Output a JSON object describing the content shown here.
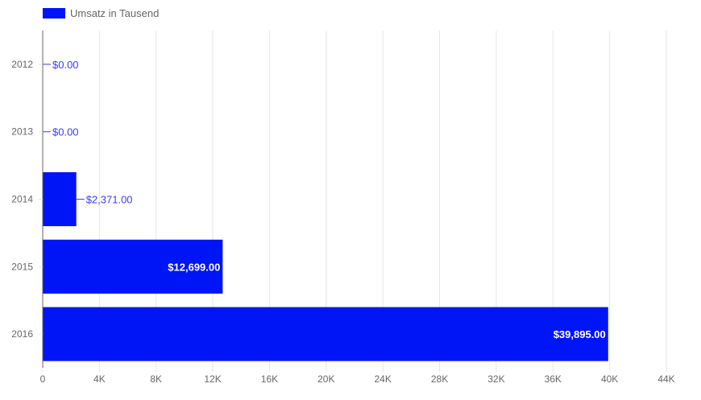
{
  "chart_data": {
    "type": "bar",
    "orientation": "horizontal",
    "categories": [
      "2012",
      "2013",
      "2014",
      "2015",
      "2016"
    ],
    "series": [
      {
        "name": "Umsatz in Tausend",
        "values": [
          0,
          0,
          2371,
          12699,
          39895
        ],
        "data_labels": [
          "$0.00",
          "$0.00",
          "$2,371.00",
          "$12,699.00",
          "$39,895.00"
        ]
      }
    ],
    "xlim": [
      0,
      44000
    ],
    "x_ticks": [
      0,
      4000,
      8000,
      12000,
      16000,
      20000,
      24000,
      28000,
      32000,
      36000,
      40000,
      44000
    ],
    "x_tick_labels": [
      "0",
      "4K",
      "8K",
      "12K",
      "16K",
      "20K",
      "24K",
      "28K",
      "32K",
      "36K",
      "40K",
      "44K"
    ],
    "title": "",
    "xlabel": "",
    "ylabel": "",
    "grid": "vertical",
    "legend_position": "top-left",
    "colors": {
      "bar": "#0015f5",
      "grid": "#e6e6e6",
      "axis": "#666666",
      "label_outside": "#3a3aff",
      "label_inside": "#ffffff"
    }
  }
}
